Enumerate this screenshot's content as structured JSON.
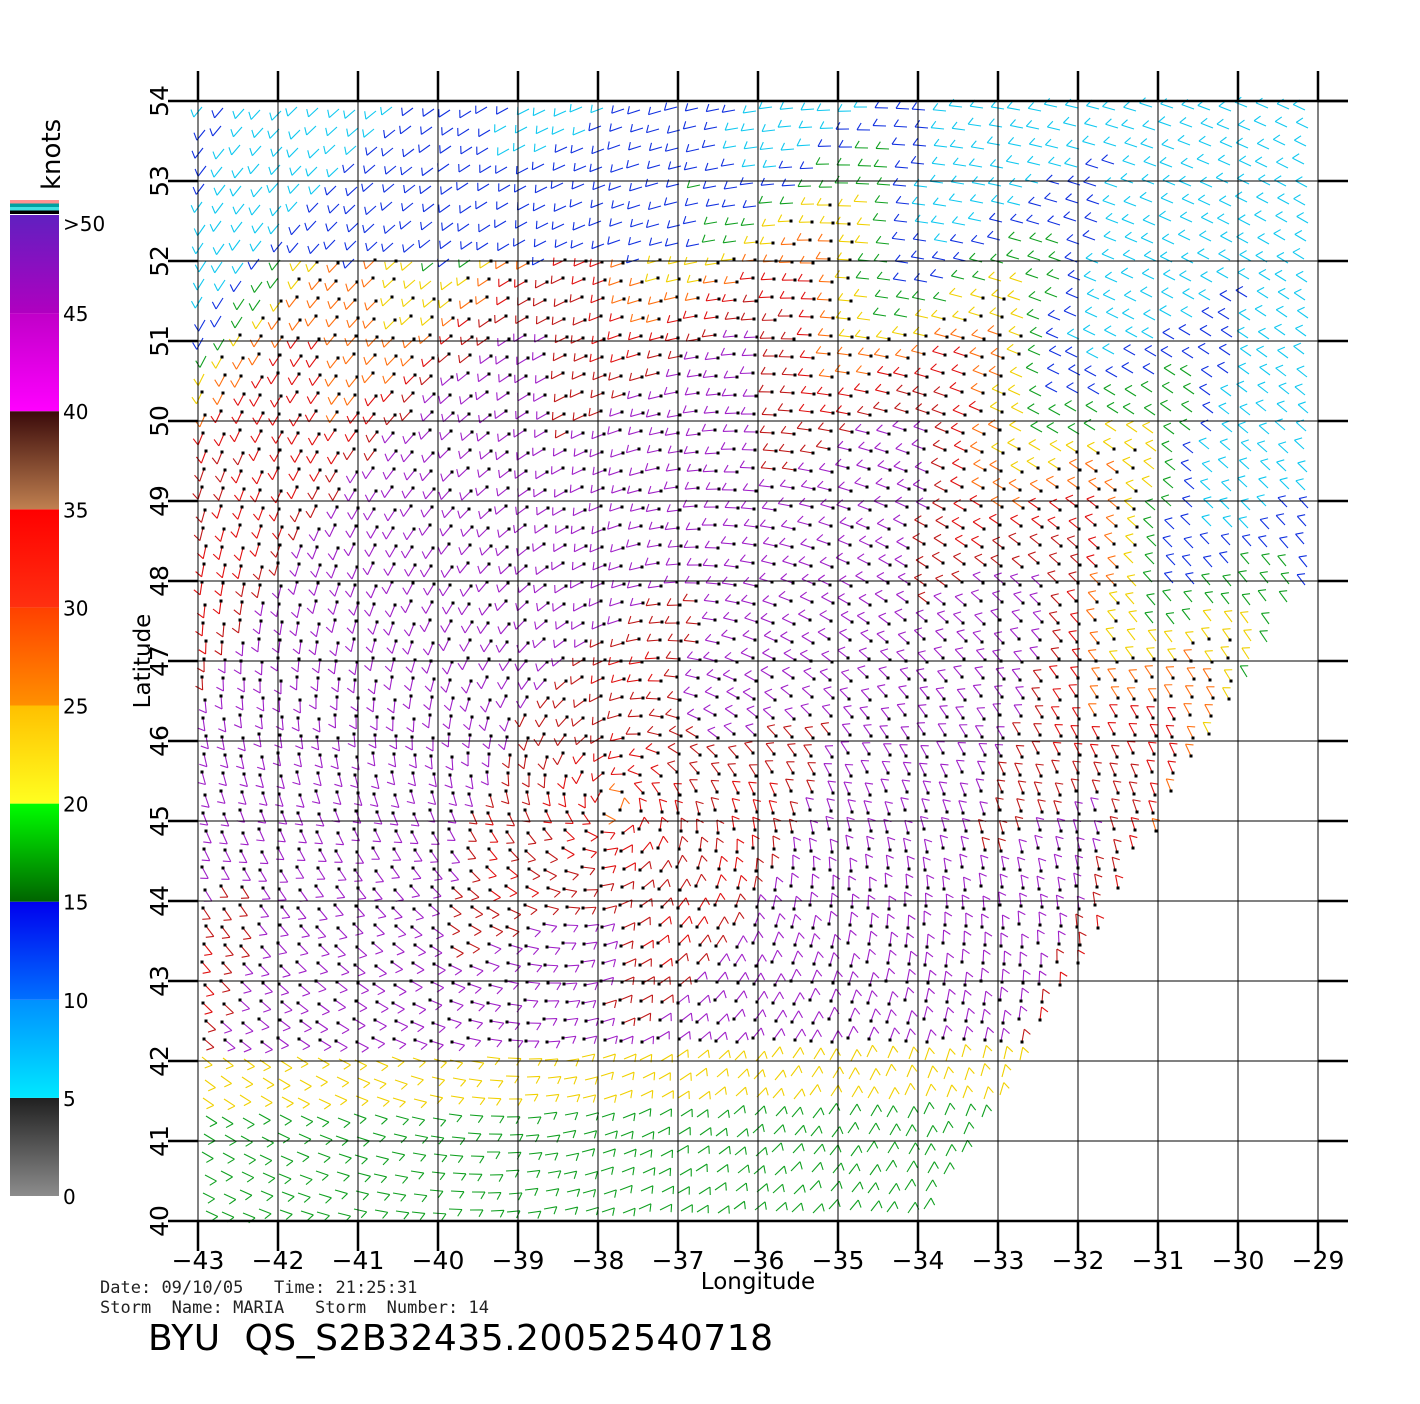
{
  "colorbar": {
    "unit_label": "knots",
    "top_label": ">50",
    "tick_labels": [
      "0",
      "5",
      "10",
      "15",
      "20",
      "25",
      "30",
      "35",
      "40",
      "45"
    ],
    "segments": [
      {
        "from": 0,
        "to": 5,
        "colors": [
          "#8c8c8c",
          "#202020"
        ]
      },
      {
        "from": 5,
        "to": 10,
        "colors": [
          "#00e8ff",
          "#0090ff"
        ]
      },
      {
        "from": 10,
        "to": 15,
        "colors": [
          "#0070ff",
          "#0000ee"
        ]
      },
      {
        "from": 15,
        "to": 20,
        "colors": [
          "#006400",
          "#00ff00"
        ]
      },
      {
        "from": 20,
        "to": 25,
        "colors": [
          "#ffff20",
          "#ffc000"
        ]
      },
      {
        "from": 25,
        "to": 30,
        "colors": [
          "#ff9000",
          "#ff4000"
        ]
      },
      {
        "from": 30,
        "to": 35,
        "colors": [
          "#ff3010",
          "#ff0000"
        ]
      },
      {
        "from": 35,
        "to": 40,
        "colors": [
          "#c08050",
          "#3a0a0a"
        ]
      },
      {
        "from": 40,
        "to": 45,
        "colors": [
          "#ff00ff",
          "#c000c8"
        ]
      },
      {
        "from": 45,
        "to": 50,
        "colors": [
          "#b000c0",
          "#6020c0"
        ]
      }
    ],
    "cap_stripes": [
      "#ff9090",
      "#00a0a0",
      "#40e0e0",
      "#000000"
    ]
  },
  "map": {
    "xlabel": "Longitude",
    "ylabel": "Latitude",
    "lon_range": [
      -43,
      -29
    ],
    "lat_range": [
      40,
      54
    ],
    "lon_ticks": [
      "-43",
      "-42",
      "-41",
      "-40",
      "-39",
      "-38",
      "-37",
      "-36",
      "-35",
      "-34",
      "-33",
      "-32",
      "-31",
      "-30",
      "-29"
    ],
    "lat_ticks": [
      "40",
      "41",
      "42",
      "43",
      "44",
      "45",
      "46",
      "47",
      "48",
      "49",
      "50",
      "51",
      "52",
      "53",
      "54"
    ],
    "grid": true
  },
  "wind_field": {
    "storm_center": {
      "lon": -37.8,
      "lat": 45.2
    },
    "speed_scale_knots": [
      0,
      50
    ],
    "swath_edge_note": ""
  },
  "footer": {
    "date_label": "Date:",
    "date_value": "09/10/05",
    "time_label": "Time:",
    "time_value": "21:25:31",
    "storm_name_label": "Storm  Name:",
    "storm_name_value": "MARIA",
    "storm_number_label": "Storm  Number:",
    "storm_number_value": "14",
    "product_id": "BYU  QS_S2B32435.20052540718"
  }
}
